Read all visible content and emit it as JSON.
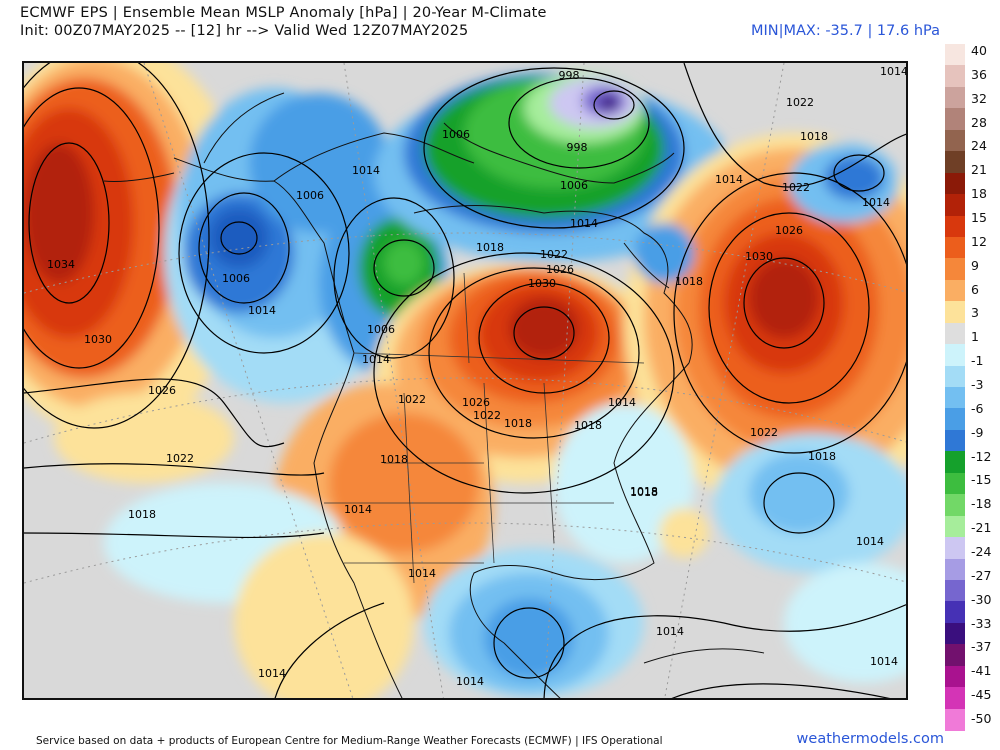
{
  "header": {
    "title_line1": "ECMWF EPS | Ensemble Mean MSLP Anomaly [hPa] | 20-Year M-Climate",
    "title_line2": "Init: 00Z07MAY2025 -- [12] hr --> Valid Wed 12Z07MAY2025",
    "minmax": "MIN|MAX: -35.7 | 17.6 hPa"
  },
  "legend": {
    "ticks": [
      "40",
      "36",
      "32",
      "28",
      "24",
      "21",
      "18",
      "15",
      "12",
      "9",
      "6",
      "3",
      "1",
      "-1",
      "-3",
      "-6",
      "-9",
      "-12",
      "-15",
      "-18",
      "-21",
      "-24",
      "-27",
      "-30",
      "-33",
      "-37",
      "-41",
      "-45",
      "-50"
    ],
    "colors": [
      "#f7e6e0",
      "#e6c3bd",
      "#cca39d",
      "#b18379",
      "#92644f",
      "#6f3f26",
      "#8b1a08",
      "#b22208",
      "#d8380d",
      "#ec5e1c",
      "#f5873a",
      "#faae63",
      "#fde29a",
      "#dedede",
      "#cdf3fb",
      "#a3dcf6",
      "#73bff1",
      "#4a9ee6",
      "#2f78d6",
      "#15a12c",
      "#3dbd3f",
      "#72d867",
      "#a6ed9b",
      "#cdc7f2",
      "#a69ce4",
      "#7666cf",
      "#4631b5",
      "#3a0f7e",
      "#72116e",
      "#a9128f",
      "#d434b6",
      "#f07ad8"
    ]
  },
  "map": {
    "isobar_labels": [
      {
        "text": "1014"
      },
      {
        "text": "1022"
      },
      {
        "text": "1018"
      },
      {
        "text": "1014"
      },
      {
        "text": "1022"
      },
      {
        "text": "1014"
      },
      {
        "text": "1026"
      },
      {
        "text": "1030"
      },
      {
        "text": "998"
      },
      {
        "text": "998"
      },
      {
        "text": "1006"
      },
      {
        "text": "1006"
      },
      {
        "text": "1014"
      },
      {
        "text": "1018"
      },
      {
        "text": "1022"
      },
      {
        "text": "1026"
      },
      {
        "text": "1030"
      },
      {
        "text": "1018"
      },
      {
        "text": "1014"
      },
      {
        "text": "1006"
      },
      {
        "text": "1006"
      },
      {
        "text": "1014"
      },
      {
        "text": "1006"
      },
      {
        "text": "1014"
      },
      {
        "text": "1034"
      },
      {
        "text": "1030"
      },
      {
        "text": "1026"
      },
      {
        "text": "1022"
      },
      {
        "text": "1018"
      },
      {
        "text": "1022"
      },
      {
        "text": "1026"
      },
      {
        "text": "1022"
      },
      {
        "text": "1018"
      },
      {
        "text": "1018"
      },
      {
        "text": "1014"
      },
      {
        "text": "1018"
      },
      {
        "text": "1014"
      },
      {
        "text": "1018"
      },
      {
        "text": "1018"
      },
      {
        "text": "1014"
      },
      {
        "text": "1014"
      },
      {
        "text": "1014"
      },
      {
        "text": "1014"
      },
      {
        "text": "1014"
      },
      {
        "text": "1014"
      },
      {
        "text": "1018"
      },
      {
        "text": "1022"
      }
    ]
  },
  "footer": {
    "credit": "Service based on data + products of European Centre for Medium-Range Weather Forecasts (ECMWF) | IFS Operational",
    "brand": "weathermodels.com"
  }
}
